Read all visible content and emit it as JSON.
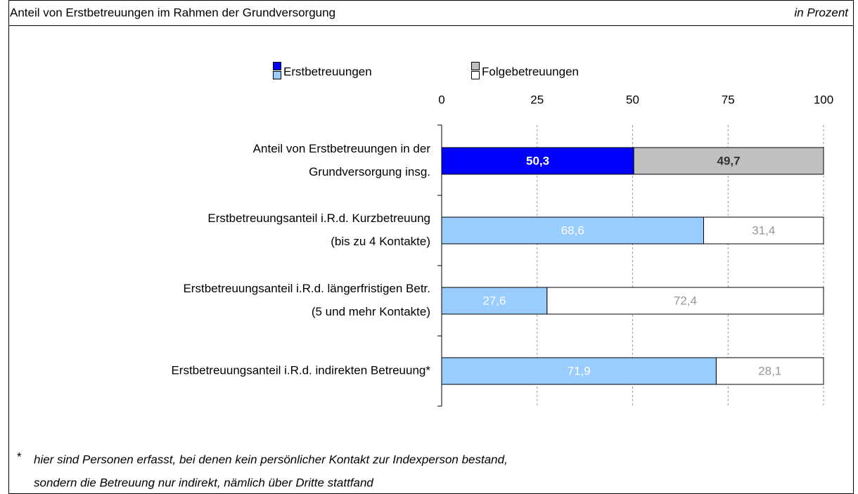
{
  "chart_data": {
    "type": "stacked_bar_horizontal",
    "title": "Anteil von Erstbetreuungen im Rahmen der Grundversorgung",
    "unit_label": "in Prozent",
    "categories": [
      [
        "Anteil von Erstbetreuungen in der",
        "Grundversorgung insg."
      ],
      [
        "Erstbetreuungsanteil i.R.d. Kurzbetreuung",
        "(bis zu 4 Kontakte)"
      ],
      [
        "Erstbetreuungsanteil i.R.d. längerfristigen Betr.",
        "(5 und mehr Kontakte)"
      ],
      [
        "Erstbetreuungsanteil i.R.d. indirekten Betreuung*"
      ]
    ],
    "series": [
      {
        "name": "Erstbetreuungen",
        "legend_colors": [
          "#0000ff",
          "#99ccff"
        ],
        "colors": [
          "#0000ff",
          "#99ccff",
          "#99ccff",
          "#99ccff"
        ],
        "label_colors": [
          "#ffffff",
          "#ffffff",
          "#ffffff",
          "#ffffff"
        ],
        "values": [
          50.3,
          68.6,
          27.6,
          71.9
        ],
        "value_labels": [
          "50,3",
          "68,6",
          "27,6",
          "71,9"
        ]
      },
      {
        "name": "Folgebetreuungen",
        "legend_colors": [
          "#c0c0c0",
          "#ffffff"
        ],
        "colors": [
          "#c0c0c0",
          "#ffffff",
          "#ffffff",
          "#ffffff"
        ],
        "label_colors": [
          "#333333",
          "#969696",
          "#969696",
          "#969696"
        ],
        "values": [
          49.7,
          31.4,
          72.4,
          28.1
        ],
        "value_labels": [
          "49,7",
          "31,4",
          "72,4",
          "28,1"
        ]
      }
    ],
    "xlim": [
      0,
      100
    ],
    "xticks": [
      0,
      25,
      50,
      75,
      100
    ],
    "grid": true,
    "footnote_marker": "*",
    "footnote": [
      "hier sind Personen erfasst, bei denen kein persönlicher Kontakt zur Indexperson bestand,",
      "sondern die Betreuung nur indirekt, nämlich über Dritte stattfand"
    ]
  }
}
